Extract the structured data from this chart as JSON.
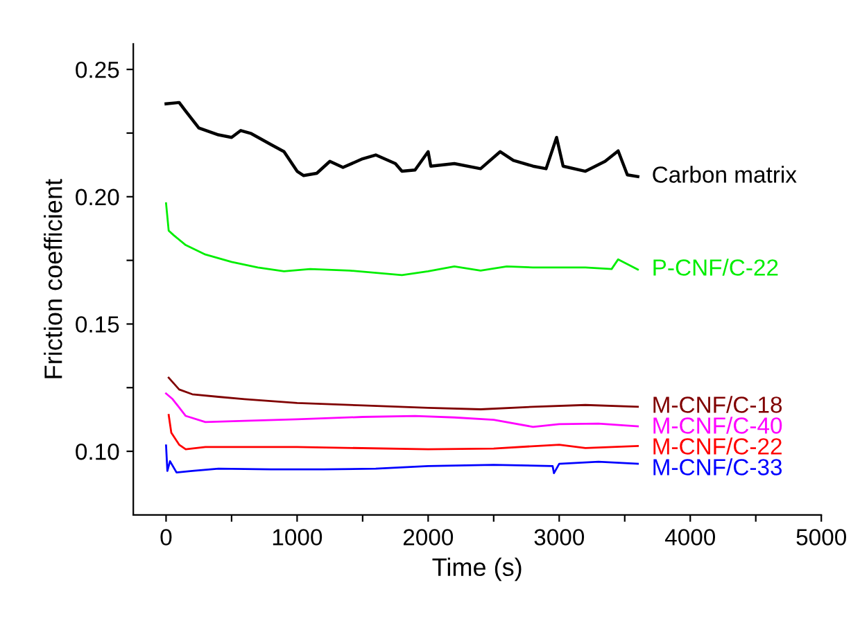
{
  "chart_data": {
    "type": "line",
    "xlabel": "Time (s)",
    "ylabel": "Friction coefficient",
    "xlim": [
      -250,
      5000
    ],
    "ylim": [
      0.075,
      0.26
    ],
    "xticks": [
      0,
      {
        "value": 500,
        "label": null
      },
      1000,
      {
        "value": 1500,
        "label": null
      },
      2000,
      {
        "value": 2500,
        "label": null
      },
      3000,
      {
        "value": 3500,
        "label": null
      },
      4000,
      {
        "value": 4500,
        "label": null
      },
      5000
    ],
    "yticks": [
      {
        "value": 0.1,
        "label": "0.10"
      },
      {
        "value": 0.125,
        "label": null
      },
      {
        "value": 0.15,
        "label": "0.15"
      },
      {
        "value": 0.175,
        "label": null
      },
      {
        "value": 0.2,
        "label": "0.20"
      },
      {
        "value": 0.225,
        "label": null
      },
      {
        "value": 0.25,
        "label": "0.25"
      }
    ],
    "grid": false,
    "legend": false,
    "marker": "none",
    "line_style": "solid",
    "series": [
      {
        "name": "Carbon matrix",
        "color": "#000000",
        "x": [
          0,
          100,
          150,
          250,
          400,
          500,
          570,
          650,
          800,
          900,
          1000,
          1050,
          1150,
          1250,
          1350,
          1500,
          1600,
          1750,
          1800,
          1900,
          2000,
          2020,
          2200,
          2400,
          2550,
          2650,
          2800,
          2900,
          2980,
          3030,
          3200,
          3350,
          3450,
          3520,
          3600
        ],
        "values": [
          0.2365,
          0.237,
          0.2336,
          0.227,
          0.2243,
          0.2233,
          0.226,
          0.2248,
          0.2205,
          0.2177,
          0.21,
          0.2083,
          0.2092,
          0.2139,
          0.2115,
          0.2149,
          0.2164,
          0.213,
          0.21,
          0.2105,
          0.2177,
          0.212,
          0.213,
          0.211,
          0.2177,
          0.2143,
          0.212,
          0.211,
          0.2233,
          0.212,
          0.21,
          0.2139,
          0.218,
          0.2086,
          0.2079
        ]
      },
      {
        "name": "P-CNF/C-22",
        "color": "#00ee00",
        "x": [
          0,
          20,
          60,
          150,
          300,
          500,
          700,
          900,
          1100,
          1400,
          1800,
          2000,
          2200,
          2400,
          2600,
          2800,
          3000,
          3200,
          3400,
          3450,
          3600
        ],
        "values": [
          0.1974,
          0.1867,
          0.1848,
          0.181,
          0.1773,
          0.1744,
          0.1722,
          0.1707,
          0.1716,
          0.171,
          0.1692,
          0.1707,
          0.1726,
          0.171,
          0.1726,
          0.1722,
          0.1722,
          0.1722,
          0.1716,
          0.1754,
          0.1714
        ]
      },
      {
        "name": "M-CNF/C-18",
        "color": "#800000",
        "x": [
          20,
          100,
          200,
          400,
          600,
          1000,
          1500,
          2000,
          2400,
          2800,
          3200,
          3600
        ],
        "values": [
          0.1289,
          0.1243,
          0.1224,
          0.1214,
          0.1205,
          0.119,
          0.118,
          0.1171,
          0.1165,
          0.1175,
          0.1182,
          0.1175
        ]
      },
      {
        "name": "M-CNF/C-40",
        "color": "#ff00ff",
        "x": [
          0,
          50,
          150,
          300,
          600,
          1000,
          1500,
          1900,
          2200,
          2500,
          2800,
          3000,
          3300,
          3600
        ],
        "values": [
          0.1227,
          0.1205,
          0.1139,
          0.1115,
          0.112,
          0.1126,
          0.1135,
          0.1139,
          0.1133,
          0.1124,
          0.1096,
          0.1107,
          0.1109,
          0.1098
        ]
      },
      {
        "name": "M-CNF/C-22",
        "color": "#ff0000",
        "x": [
          20,
          40,
          100,
          150,
          300,
          1000,
          2000,
          2500,
          3000,
          3200,
          3600
        ],
        "values": [
          0.1143,
          0.1073,
          0.1026,
          0.1008,
          0.1017,
          0.1017,
          0.1008,
          0.1011,
          0.1026,
          0.1013,
          0.1021
        ]
      },
      {
        "name": "M-CNF/C-33",
        "color": "#0000ff",
        "x": [
          0,
          10,
          30,
          80,
          200,
          400,
          800,
          1200,
          1600,
          2000,
          2500,
          2950,
          2960,
          3000,
          3300,
          3600
        ],
        "values": [
          0.1023,
          0.0923,
          0.0961,
          0.0917,
          0.0923,
          0.0932,
          0.0929,
          0.0929,
          0.0932,
          0.0942,
          0.0947,
          0.0942,
          0.0914,
          0.0951,
          0.0959,
          0.0951
        ]
      }
    ]
  }
}
